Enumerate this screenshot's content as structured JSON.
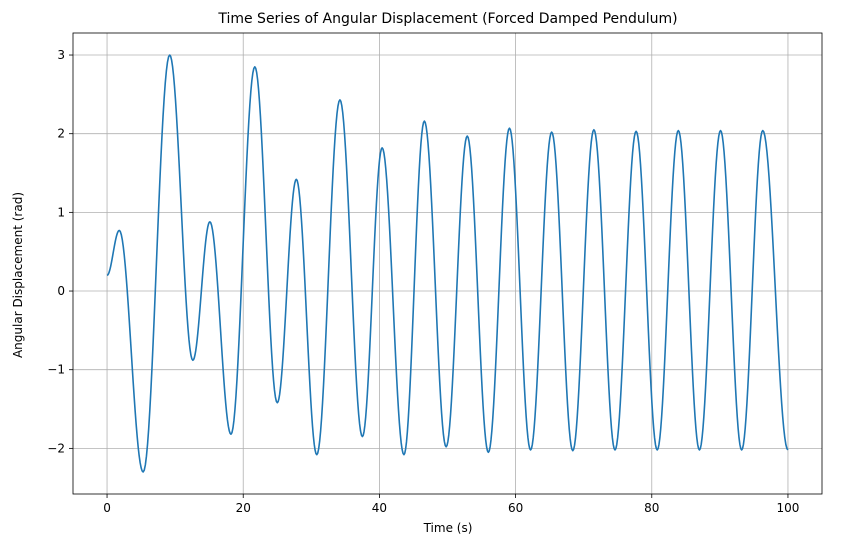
{
  "chart_data": {
    "type": "line",
    "title": "Time Series of Angular Displacement (Forced Damped Pendulum)",
    "xlabel": "Time (s)",
    "ylabel": "Angular Displacement (rad)",
    "xlim": [
      -5,
      105
    ],
    "ylim": [
      -2.58,
      3.28
    ],
    "xticks": [
      0,
      20,
      40,
      60,
      80,
      100
    ],
    "xtick_labels": [
      "0",
      "20",
      "40",
      "60",
      "80",
      "100"
    ],
    "yticks": [
      -2,
      -1,
      0,
      1,
      2,
      3
    ],
    "ytick_labels": [
      "−2",
      "−1",
      "0",
      "1",
      "2",
      "3"
    ],
    "grid": true,
    "line_color": "#1f77b4",
    "series": [
      {
        "x": [
          0,
          1.8,
          5.3,
          9.2,
          12.6,
          15.1,
          18.2,
          21.7,
          25.0,
          27.8,
          30.8,
          34.2,
          37.5,
          40.4,
          43.6,
          46.6,
          49.8,
          52.9,
          56.0,
          59.1,
          62.2,
          65.3,
          68.4,
          71.5,
          74.6,
          77.7,
          80.8,
          83.9,
          87.0,
          90.1,
          93.2,
          96.3,
          100
        ],
        "values": [
          0.2,
          0.77,
          -2.3,
          3.0,
          -0.88,
          0.88,
          -1.82,
          2.85,
          -1.42,
          1.42,
          -2.08,
          2.43,
          -1.85,
          1.82,
          -2.08,
          2.16,
          -1.98,
          1.97,
          -2.05,
          2.07,
          -2.02,
          2.02,
          -2.03,
          2.05,
          -2.02,
          2.03,
          -2.02,
          2.04,
          -2.02,
          2.04,
          -2.02,
          2.04,
          -2.02
        ]
      }
    ]
  }
}
